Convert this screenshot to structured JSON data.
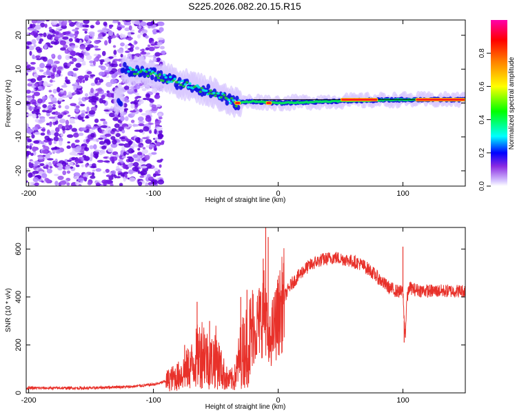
{
  "title": "S225.2026.082.20.15.R15",
  "chart_data": [
    {
      "type": "heatmap",
      "title": "S225.2026.082.20.15.R15",
      "xlabel": "Height of straight line (km)",
      "ylabel": "Frequency (Hz)",
      "xlim": [
        -202,
        150
      ],
      "ylim": [
        -24.5,
        24.5
      ],
      "xticks": [
        -200,
        -100,
        0,
        100
      ],
      "xtick_labels": [
        "-200",
        "-100",
        "0",
        "100"
      ],
      "yticks": [
        -20,
        -10,
        0,
        10,
        20
      ],
      "ytick_labels": [
        "-20",
        "-10",
        "0",
        "10",
        "20"
      ],
      "colorbar": {
        "label": "Normalized spectral amplitude",
        "range": [
          0,
          1
        ],
        "ticks": [
          0.0,
          0.2,
          0.4,
          0.6,
          0.8
        ],
        "tick_labels": [
          "0.0",
          "0.2",
          "0.4",
          "0.6",
          "0.8"
        ]
      },
      "ridge_track": [
        {
          "x": -125,
          "f": 10
        },
        {
          "x": -100,
          "f": 8.5
        },
        {
          "x": -80,
          "f": 6
        },
        {
          "x": -60,
          "f": 4
        },
        {
          "x": -45,
          "f": 2
        },
        {
          "x": -35,
          "f": 0
        },
        {
          "x": -20,
          "f": 0.5
        },
        {
          "x": 0,
          "f": 0
        },
        {
          "x": 40,
          "f": 0.5
        },
        {
          "x": 100,
          "f": 1
        },
        {
          "x": 150,
          "f": 1
        }
      ],
      "peak_segments": [
        {
          "x0": 50,
          "x1": 80,
          "f": 1
        },
        {
          "x0": 110,
          "x1": 150,
          "f": 1
        },
        {
          "x0": -35,
          "x1": -30,
          "f": 0
        },
        {
          "x0": -10,
          "x1": -5,
          "f": 0
        }
      ]
    },
    {
      "type": "line",
      "xlabel": "Height of straight line (km)",
      "ylabel": "SNR (10 * v/v)",
      "xlim": [
        -202,
        150
      ],
      "ylim": [
        0,
        690
      ],
      "xticks": [
        -200,
        -100,
        0,
        100
      ],
      "xtick_labels": [
        "-200",
        "-100",
        "0",
        "100"
      ],
      "yticks": [
        0,
        200,
        400,
        600
      ],
      "ytick_labels": [
        "0",
        "200",
        "400",
        "600"
      ],
      "series": [
        {
          "name": "SNR",
          "color": "#e8312a",
          "x": [
            -202,
            -190,
            -180,
            -170,
            -160,
            -150,
            -140,
            -130,
            -120,
            -110,
            -100,
            -95,
            -90,
            -85,
            -80,
            -75,
            -70,
            -65,
            -60,
            -55,
            -50,
            -45,
            -40,
            -35,
            -30,
            -25,
            -20,
            -15,
            -12,
            -10,
            -8,
            -5,
            0,
            5,
            10,
            15,
            20,
            25,
            30,
            35,
            40,
            45,
            50,
            55,
            60,
            65,
            70,
            75,
            80,
            85,
            90,
            95,
            100,
            101,
            102,
            103,
            105,
            110,
            120,
            130,
            140,
            150
          ],
          "y": [
            20,
            20,
            20,
            20,
            20,
            20,
            22,
            25,
            25,
            30,
            35,
            40,
            50,
            60,
            70,
            90,
            110,
            150,
            180,
            120,
            150,
            90,
            50,
            60,
            160,
            200,
            250,
            300,
            330,
            350,
            180,
            250,
            320,
            400,
            450,
            480,
            510,
            530,
            545,
            555,
            560,
            565,
            560,
            555,
            548,
            540,
            525,
            505,
            480,
            455,
            435,
            425,
            420,
            300,
            240,
            380,
            440,
            430,
            425,
            425,
            425,
            425
          ]
        }
      ],
      "spikes": [
        {
          "x": -75,
          "y": 200
        },
        {
          "x": -65,
          "y": 380
        },
        {
          "x": -55,
          "y": 300
        },
        {
          "x": -30,
          "y": 400
        },
        {
          "x": -25,
          "y": 430
        },
        {
          "x": -10,
          "y": 690
        },
        {
          "x": -8,
          "y": 650
        },
        {
          "x": -12,
          "y": 560
        },
        {
          "x": 100,
          "y": 610
        },
        {
          "x": 101,
          "y": 210
        }
      ]
    }
  ]
}
